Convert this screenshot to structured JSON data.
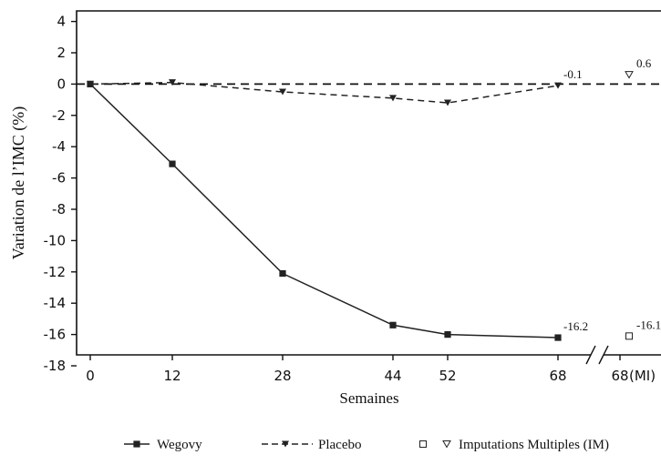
{
  "chart_data": {
    "type": "line",
    "xlabel": "Semaines",
    "ylabel": "Variation de l’IMC (%)",
    "x_ticks": [
      "0",
      "12",
      "28",
      "44",
      "52",
      "68",
      "68"
    ],
    "x_break_label": "(MI)",
    "ylim": [
      -18,
      4
    ],
    "y_ticks": [
      4,
      2,
      0,
      -2,
      -4,
      -6,
      -8,
      -10,
      -12,
      -14,
      -16,
      -18
    ],
    "reference_line": 0,
    "legend_position": "bottom",
    "colors": {
      "wegovy": "#222222",
      "placebo": "#222222",
      "axis": "#111111"
    },
    "series": [
      {
        "name": "Wegovy",
        "style": "solid",
        "marker": "square",
        "points": [
          {
            "x": 0,
            "y": 0
          },
          {
            "x": 12,
            "y": -5.1
          },
          {
            "x": 28,
            "y": -12.1
          },
          {
            "x": 44,
            "y": -15.4
          },
          {
            "x": 52,
            "y": -16.0
          },
          {
            "x": 68,
            "y": -16.2
          }
        ],
        "end_label": "-16.2"
      },
      {
        "name": "Placebo",
        "style": "dashed",
        "marker": "triangle-down",
        "points": [
          {
            "x": 0,
            "y": 0
          },
          {
            "x": 12,
            "y": 0.1
          },
          {
            "x": 28,
            "y": -0.5
          },
          {
            "x": 44,
            "y": -0.9
          },
          {
            "x": 52,
            "y": -1.2
          },
          {
            "x": 68,
            "y": -0.1
          }
        ],
        "end_label": "-0.1"
      }
    ],
    "multiple_imputation": [
      {
        "series": "Wegovy",
        "marker": "square-open",
        "y": -16.1,
        "label": "-16.1"
      },
      {
        "series": "Placebo",
        "marker": "triangle-down-open",
        "y": 0.6,
        "label": "0.6"
      }
    ],
    "legend": [
      {
        "label": "Wegovy",
        "style": "solid",
        "marker": "square"
      },
      {
        "label": "Placebo",
        "style": "dashed",
        "marker": "triangle-down"
      },
      {
        "label": "Imputations Multiples (IM)",
        "markers": [
          "square-open",
          "triangle-down-open"
        ]
      }
    ]
  }
}
